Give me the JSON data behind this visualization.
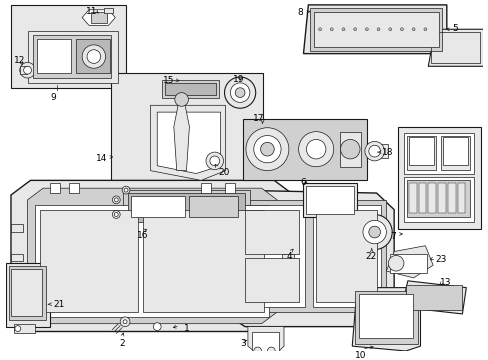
{
  "bg": "#ffffff",
  "lc": "#1a1a1a",
  "gray1": "#e8e8e8",
  "gray2": "#d0d0d0",
  "gray3": "#b8b8b8",
  "figw": 4.89,
  "figh": 3.6,
  "dpi": 100
}
